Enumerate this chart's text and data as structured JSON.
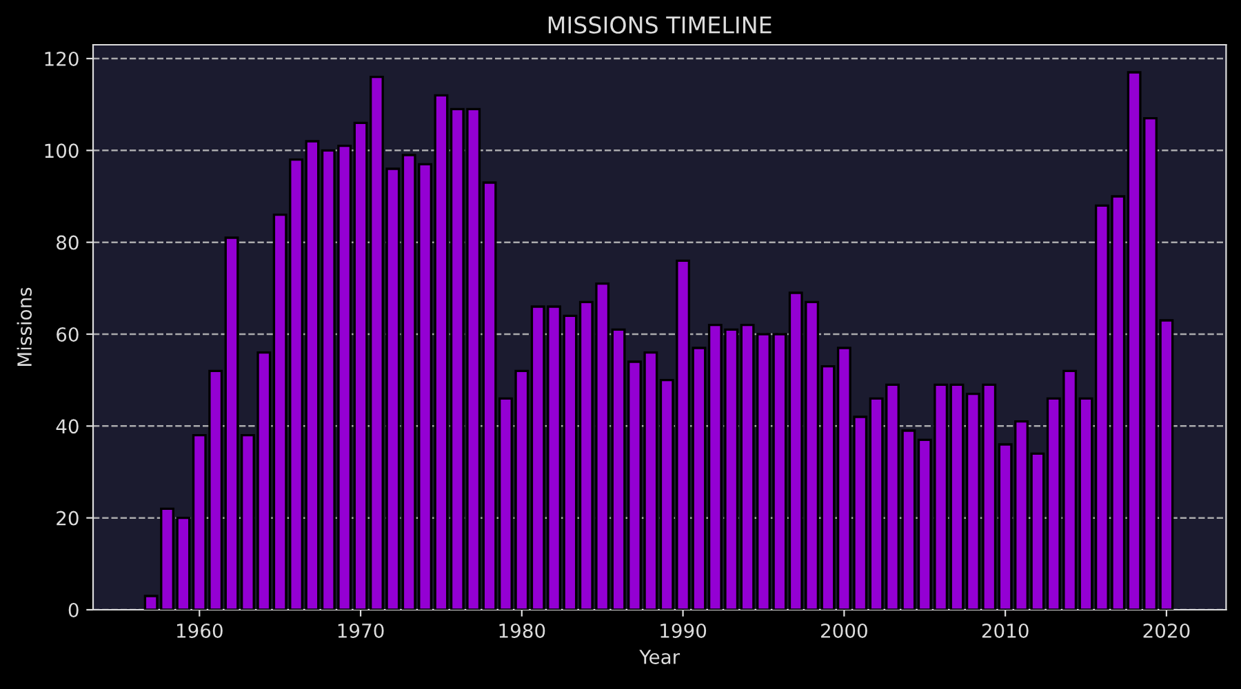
{
  "chart_data": {
    "type": "bar",
    "title": "MISSIONS TIMELINE",
    "xlabel": "Year",
    "ylabel": "Missions",
    "x": [
      1957,
      1958,
      1959,
      1960,
      1961,
      1962,
      1963,
      1964,
      1965,
      1966,
      1967,
      1968,
      1969,
      1970,
      1971,
      1972,
      1973,
      1974,
      1975,
      1976,
      1977,
      1978,
      1979,
      1980,
      1981,
      1982,
      1983,
      1984,
      1985,
      1986,
      1987,
      1988,
      1989,
      1990,
      1991,
      1992,
      1993,
      1994,
      1995,
      1996,
      1997,
      1998,
      1999,
      2000,
      2001,
      2002,
      2003,
      2004,
      2005,
      2006,
      2007,
      2008,
      2009,
      2010,
      2011,
      2012,
      2013,
      2014,
      2015,
      2016,
      2017,
      2018,
      2019,
      2020
    ],
    "values": [
      3,
      22,
      20,
      38,
      52,
      81,
      38,
      56,
      86,
      98,
      102,
      100,
      101,
      106,
      116,
      96,
      99,
      97,
      112,
      109,
      109,
      93,
      46,
      52,
      66,
      66,
      64,
      67,
      71,
      61,
      54,
      56,
      50,
      76,
      57,
      62,
      61,
      62,
      60,
      60,
      69,
      67,
      53,
      57,
      42,
      46,
      49,
      39,
      37,
      49,
      49,
      47,
      49,
      36,
      41,
      34,
      46,
      52,
      46,
      88,
      90,
      117,
      107,
      63
    ],
    "color": "#9400d3",
    "xlim": [
      1953.4,
      2023.7
    ],
    "xticks": [
      1960,
      1970,
      1980,
      1990,
      2000,
      2010,
      2020
    ],
    "ylim": [
      0,
      123
    ],
    "yticks": [
      0,
      20,
      40,
      60,
      80,
      100,
      120
    ],
    "grid": "y",
    "line_style": "dashed"
  }
}
